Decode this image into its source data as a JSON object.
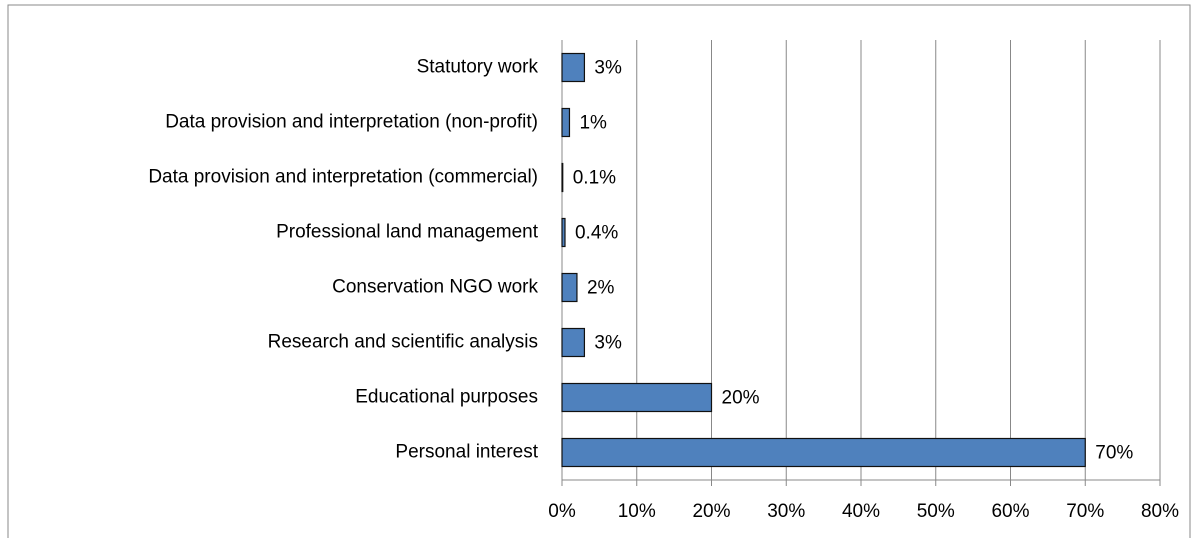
{
  "chart_data": {
    "type": "hbar",
    "categories": [
      "Statutory work",
      "Data provision and interpretation (non-profit)",
      "Data provision and interpretation (commercial)",
      "Professional land management",
      "Conservation NGO work",
      "Research and scientific analysis",
      "Educational purposes",
      "Personal interest"
    ],
    "values": [
      3,
      1,
      0.1,
      0.4,
      2,
      3,
      20,
      70
    ],
    "value_labels": [
      "3%",
      "1%",
      "0.1%",
      "0.4%",
      "2%",
      "3%",
      "20%",
      "70%"
    ],
    "color": "#4f81bd",
    "xlim": [
      0,
      80
    ],
    "xticks": [
      {
        "value": 0,
        "label": "0%"
      },
      {
        "value": 10,
        "label": "10%"
      },
      {
        "value": 20,
        "label": "20%"
      },
      {
        "value": 30,
        "label": "30%"
      },
      {
        "value": 40,
        "label": "40%"
      },
      {
        "value": 50,
        "label": "50%"
      },
      {
        "value": 60,
        "label": "60%"
      },
      {
        "value": 70,
        "label": "70%"
      },
      {
        "value": 80,
        "label": "80%"
      }
    ],
    "grid": true
  }
}
